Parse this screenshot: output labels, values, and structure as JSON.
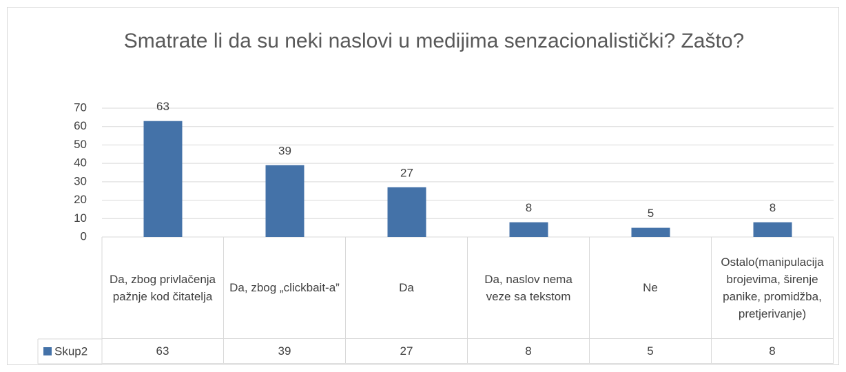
{
  "chart_data": {
    "type": "bar",
    "title": "Smatrate li da su neki naslovi u medijima senzacionalistički? Zašto?",
    "categories": [
      "Da, zbog privlačenja pažnje kod čitatelja",
      "Da, zbog „clickbait-a”",
      "Da",
      "Da, naslov nema veze sa tekstom",
      "Ne",
      "Ostalo(manipulacija brojevima, širenje panike, promidžba, pretjerivanje)"
    ],
    "series": [
      {
        "name": "Skup2",
        "color": "#4472a8",
        "values": [
          63,
          39,
          27,
          8,
          5,
          8
        ]
      }
    ],
    "ylim": [
      0,
      70
    ],
    "yticks": [
      0,
      10,
      20,
      30,
      40,
      50,
      60,
      70
    ],
    "grid": true,
    "data_table": true
  }
}
